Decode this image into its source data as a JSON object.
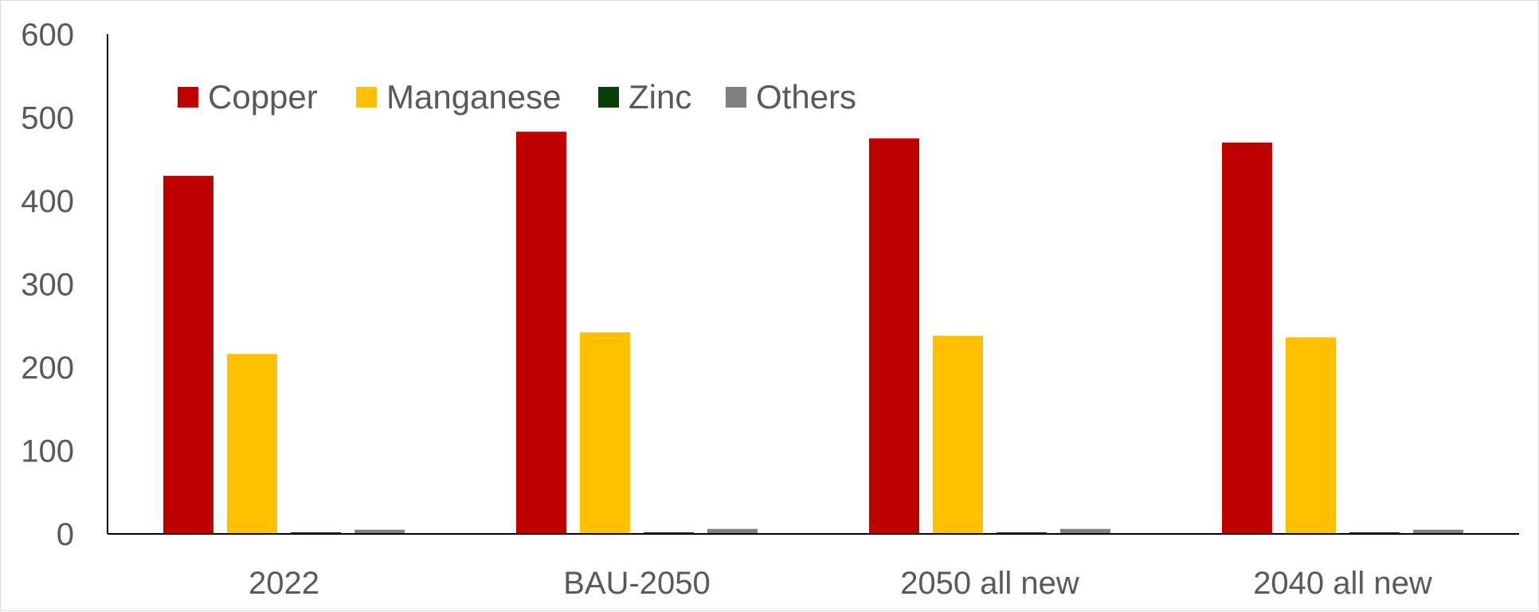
{
  "chart_data": {
    "type": "bar",
    "title": "",
    "xlabel": "",
    "ylabel": "",
    "ylim": [
      0,
      600
    ],
    "yticks": [
      0,
      100,
      200,
      300,
      400,
      500,
      600
    ],
    "ytick_labels": [
      "0",
      "100",
      "200",
      "300",
      "400",
      "500",
      "600"
    ],
    "categories": [
      "2022",
      "BAU-2050",
      "2050 all new",
      "2040 all new"
    ],
    "series": [
      {
        "name": "Copper",
        "color": "#C00000",
        "values": [
          430,
          483,
          475,
          470
        ]
      },
      {
        "name": "Manganese",
        "color": "#FFC000",
        "values": [
          216,
          242,
          238,
          236
        ]
      },
      {
        "name": "Zinc",
        "color": "#0B3D0B",
        "values": [
          1,
          1,
          1,
          1
        ]
      },
      {
        "name": "Others",
        "color": "#808080",
        "values": [
          5,
          6,
          6,
          5
        ]
      }
    ],
    "grid": false,
    "legend_position": "top-left"
  }
}
